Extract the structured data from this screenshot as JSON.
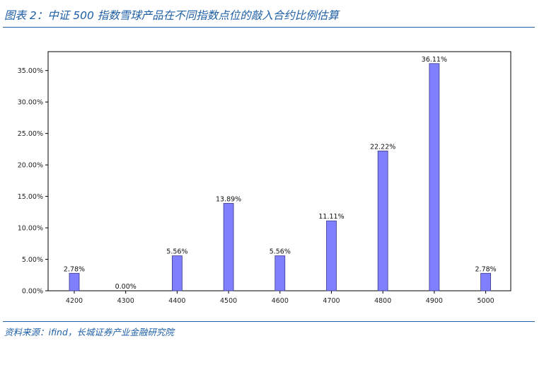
{
  "figure": {
    "title": "图表 2：中证 500 指数雪球产品在不同指数点位的敲入合约比例估算",
    "source": "资料来源：ifind，长城证券产业金融研究院"
  },
  "chart_data": {
    "type": "bar",
    "categories": [
      "4200",
      "4300",
      "4400",
      "4500",
      "4600",
      "4700",
      "4800",
      "4900",
      "5000"
    ],
    "values": [
      2.78,
      0.0,
      5.56,
      13.89,
      5.56,
      11.11,
      22.22,
      36.11,
      2.78
    ],
    "data_labels": [
      "2.78%",
      "0.00%",
      "5.56%",
      "13.89%",
      "5.56%",
      "11.11%",
      "22.22%",
      "36.11%",
      "2.78%"
    ],
    "ylim": [
      0,
      38
    ],
    "yticks": [
      0,
      5,
      10,
      15,
      20,
      25,
      30,
      35
    ],
    "ytick_labels": [
      "0.00%",
      "5.00%",
      "10.00%",
      "15.00%",
      "20.00%",
      "25.00%",
      "30.00%",
      "35.00%"
    ],
    "bar_color": "#8080ff",
    "bar_edge_color": "#3a3a8a",
    "grid": false
  }
}
